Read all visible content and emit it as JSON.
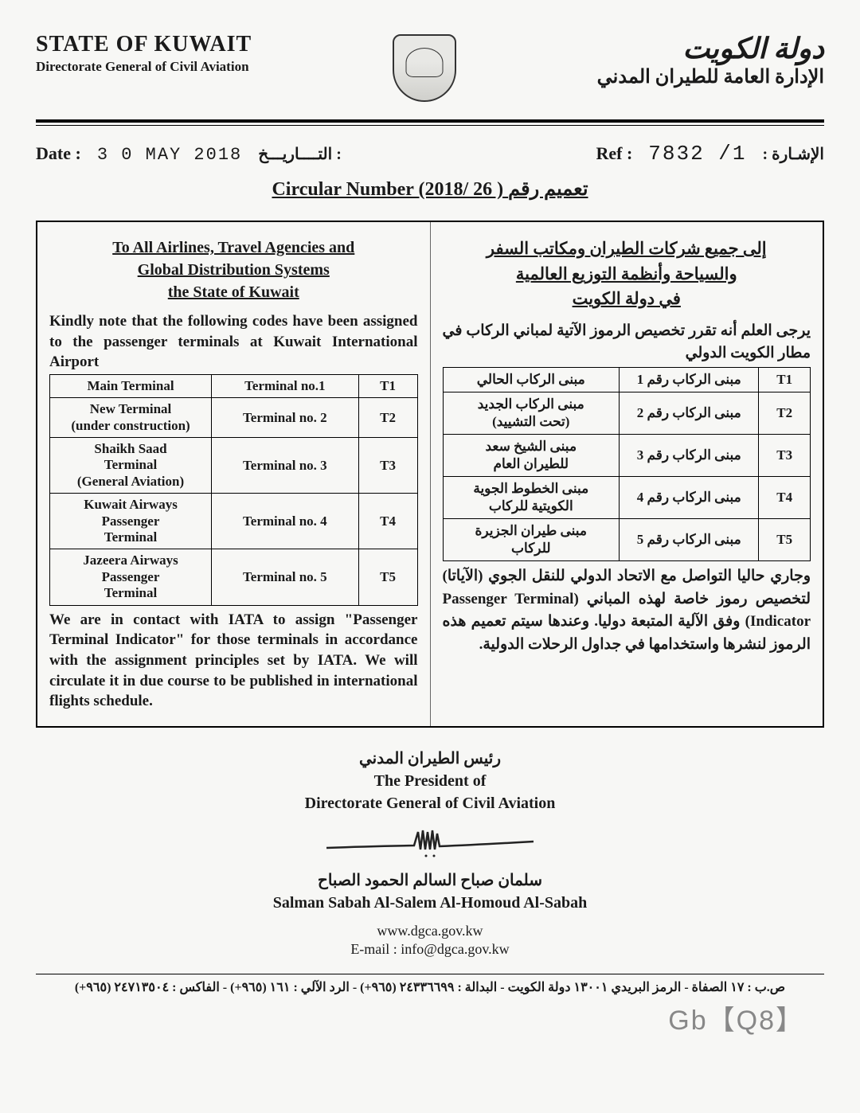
{
  "header": {
    "en_title": "STATE OF KUWAIT",
    "en_subtitle": "Directorate General of Civil Aviation",
    "ar_title": "دولة الكويت",
    "ar_subtitle": "الإدارة العامة للطيران المدني"
  },
  "meta": {
    "date_label": "Date :",
    "date_value": "3 0 MAY 2018",
    "date_ar": "التــــاريـــخ :",
    "ref_label": "Ref :",
    "ref_value": "7832 /1",
    "ref_ar": "الإشـارة :"
  },
  "circular_title": "Circular Number (2018/ 26 ) تعميم رقم",
  "english": {
    "addressee_l1": "To All Airlines, Travel Agencies and",
    "addressee_l2": "Global Distribution Systems",
    "addressee_l3": "the State of Kuwait",
    "intro": "Kindly note that the following codes have been assigned to the passenger terminals at Kuwait International Airport",
    "table": [
      {
        "desc": "Main Terminal",
        "name": "Terminal no.1",
        "code": "T1"
      },
      {
        "desc": "New Terminal\n(under construction)",
        "name": "Terminal no. 2",
        "code": "T2"
      },
      {
        "desc": "Shaikh Saad\nTerminal\n(General Aviation)",
        "name": "Terminal no. 3",
        "code": "T3"
      },
      {
        "desc": "Kuwait Airways\nPassenger\nTerminal",
        "name": "Terminal no. 4",
        "code": "T4"
      },
      {
        "desc": "Jazeera Airways\nPassenger\nTerminal",
        "name": "Terminal no. 5",
        "code": "T5"
      }
    ],
    "closing": "We are in contact with IATA to assign \"Passenger Terminal Indicator\" for those terminals in accordance with the assignment principles set by IATA. We will circulate it in due course to be published in international flights schedule."
  },
  "arabic": {
    "addressee_l1": "إلى جميع شركات الطيران ومكاتب السفر",
    "addressee_l2": "والسياحة وأنظمة التوزيع العالمية",
    "addressee_l3": "في دولة الكويت",
    "intro": "يرجى العلم أنه تقرر تخصيص الرموز الآتية لمباني الركاب في مطار الكويت الدولي",
    "table": [
      {
        "code": "T1",
        "name": "مبنى الركاب رقم 1",
        "desc": "مبنى الركاب الحالي"
      },
      {
        "code": "T2",
        "name": "مبنى الركاب رقم 2",
        "desc": "مبنى الركاب الجديد\n(تحت التشييد)"
      },
      {
        "code": "T3",
        "name": "مبنى الركاب رقم 3",
        "desc": "مبنى الشيخ سعد\nللطيران العام"
      },
      {
        "code": "T4",
        "name": "مبنى الركاب رقم 4",
        "desc": "مبنى الخطوط الجوية\nالكويتية للركاب"
      },
      {
        "code": "T5",
        "name": "مبنى الركاب رقم 5",
        "desc": "مبنى طيران الجزيرة\nللركاب"
      }
    ],
    "closing": "وجاري حاليا التواصل مع الاتحاد الدولي للنقل الجوي (الآياتا) لتخصيص رموز خاصة لهذه المباني (Passenger Terminal Indicator) وفق الآلية المتبعة دوليا. وعندها سيتم تعميم هذه الرموز لنشرها واستخدامها في جداول الرحلات الدولية."
  },
  "signature": {
    "title_ar": "رئيس الطيران المدني",
    "title_en1": "The President of",
    "title_en2": "Directorate General of Civil Aviation",
    "name_ar": "سلمان صباح السالم الحمود الصباح",
    "name_en": "Salman Sabah Al-Salem Al-Homoud Al-Sabah"
  },
  "contact": {
    "web": "www.dgca.gov.kw",
    "email": "E-mail : info@dgca.gov.kw"
  },
  "watermark": "Gb【Q8】",
  "footer": "ص.ب : ١٧ الصفاة - الرمز البريدي ١٣٠٠١ دولة الكويت - البدالة : ٢٤٣٣٦٦٩٩ (٩٦٥+) - الرد الآلي : ١٦١ (٩٦٥+) - الفاكس : ٢٤٧١٣٥٠٤ (٩٦٥+)"
}
